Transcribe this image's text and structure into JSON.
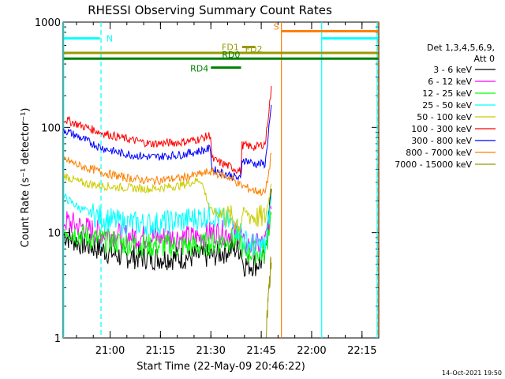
{
  "chart_data": {
    "type": "line",
    "title": "RHESSI Observing Summary Count Rates",
    "xlabel": "Start Time (22-May-09 20:46:22)",
    "ylabel": "Count Rate (s⁻¹ detector⁻¹)",
    "y_scale": "log",
    "ylim": [
      1,
      1000
    ],
    "xlim_minutes": [
      20.767,
      22.333
    ],
    "x_ticks": [
      {
        "label": "21:00",
        "t": 21.0
      },
      {
        "label": "21:15",
        "t": 21.25
      },
      {
        "label": "21:30",
        "t": 21.5
      },
      {
        "label": "21:45",
        "t": 21.75
      },
      {
        "label": "22:00",
        "t": 22.0
      },
      {
        "label": "22:15",
        "t": 22.25
      }
    ],
    "y_ticks": [
      {
        "label": "1",
        "v": 1
      },
      {
        "label": "10",
        "v": 10
      },
      {
        "label": "100",
        "v": 100
      },
      {
        "label": "1000",
        "v": 1000
      }
    ],
    "legend": {
      "header": [
        "Det 1,3,4,5,6,9,",
        "Att 0"
      ],
      "placement": "right"
    },
    "series": [
      {
        "name": "3 - 6 keV",
        "color": "#000000",
        "points": [
          [
            20.77,
            9.5
          ],
          [
            20.85,
            8.0
          ],
          [
            20.95,
            7.0
          ],
          [
            21.05,
            6.0
          ],
          [
            21.2,
            5.8
          ],
          [
            21.35,
            5.8
          ],
          [
            21.45,
            6.0
          ],
          [
            21.5,
            6.0
          ],
          [
            21.6,
            7.0
          ],
          [
            21.65,
            7.0
          ],
          [
            21.66,
            5.0
          ],
          [
            21.72,
            5.0
          ],
          [
            21.77,
            5.5
          ],
          [
            21.785,
            14
          ],
          [
            21.795,
            22
          ],
          [
            21.8,
            24
          ]
        ]
      },
      {
        "name": "6 - 12 keV",
        "color": "#ff00ff",
        "points": [
          [
            20.77,
            13
          ],
          [
            20.85,
            11.5
          ],
          [
            20.95,
            10
          ],
          [
            21.05,
            9.5
          ],
          [
            21.2,
            9.0
          ],
          [
            21.35,
            9.0
          ],
          [
            21.45,
            9.0
          ],
          [
            21.5,
            10
          ],
          [
            21.6,
            10
          ],
          [
            21.65,
            10
          ],
          [
            21.66,
            7.5
          ],
          [
            21.72,
            7.5
          ],
          [
            21.77,
            8
          ],
          [
            21.79,
            14
          ],
          [
            21.8,
            18
          ]
        ]
      },
      {
        "name": "12 - 25 keV",
        "color": "#00ff00",
        "points": [
          [
            20.77,
            11
          ],
          [
            20.85,
            9.5
          ],
          [
            20.95,
            8.5
          ],
          [
            21.05,
            8.0
          ],
          [
            21.2,
            7.5
          ],
          [
            21.35,
            7.5
          ],
          [
            21.45,
            7.5
          ],
          [
            21.5,
            8.0
          ],
          [
            21.6,
            8.5
          ],
          [
            21.65,
            8.5
          ],
          [
            21.66,
            6.5
          ],
          [
            21.72,
            6.5
          ],
          [
            21.77,
            6.5
          ],
          [
            21.79,
            12
          ],
          [
            21.8,
            16
          ]
        ]
      },
      {
        "name": "25 - 50 keV",
        "color": "#00ffff",
        "points": [
          [
            20.77,
            22
          ],
          [
            20.85,
            17
          ],
          [
            20.95,
            14
          ],
          [
            21.05,
            12.5
          ],
          [
            21.2,
            12
          ],
          [
            21.35,
            13
          ],
          [
            21.45,
            14
          ],
          [
            21.5,
            15
          ],
          [
            21.6,
            12
          ],
          [
            21.65,
            10.5
          ],
          [
            21.66,
            8.5
          ],
          [
            21.72,
            7.5
          ],
          [
            21.77,
            7.5
          ],
          [
            21.79,
            16
          ],
          [
            21.8,
            22
          ]
        ]
      },
      {
        "name": "50 - 100 keV",
        "color": "#cccc00",
        "points": [
          [
            20.77,
            35
          ],
          [
            20.85,
            30
          ],
          [
            20.95,
            28
          ],
          [
            21.05,
            27
          ],
          [
            21.2,
            26
          ],
          [
            21.35,
            28
          ],
          [
            21.45,
            32
          ],
          [
            21.5,
            16
          ],
          [
            21.6,
            14
          ],
          [
            21.65,
            12
          ],
          [
            21.66,
            16
          ],
          [
            21.72,
            14
          ],
          [
            21.77,
            14
          ],
          [
            21.79,
            22
          ],
          [
            21.8,
            30
          ]
        ]
      },
      {
        "name": "100 - 300 keV",
        "color": "#ff0000",
        "points": [
          [
            20.77,
            120
          ],
          [
            20.85,
            105
          ],
          [
            20.95,
            90
          ],
          [
            21.05,
            80
          ],
          [
            21.2,
            70
          ],
          [
            21.35,
            72
          ],
          [
            21.45,
            78
          ],
          [
            21.5,
            85
          ],
          [
            21.505,
            50
          ],
          [
            21.6,
            42
          ],
          [
            21.65,
            38
          ],
          [
            21.655,
            68
          ],
          [
            21.72,
            65
          ],
          [
            21.77,
            70
          ],
          [
            21.79,
            160
          ],
          [
            21.8,
            230
          ]
        ]
      },
      {
        "name": "300 - 800 keV",
        "color": "#0000ff",
        "points": [
          [
            20.77,
            95
          ],
          [
            20.85,
            80
          ],
          [
            20.95,
            65
          ],
          [
            21.05,
            57
          ],
          [
            21.2,
            52
          ],
          [
            21.35,
            55
          ],
          [
            21.45,
            60
          ],
          [
            21.5,
            63
          ],
          [
            21.505,
            40
          ],
          [
            21.6,
            35
          ],
          [
            21.65,
            32
          ],
          [
            21.655,
            50
          ],
          [
            21.72,
            45
          ],
          [
            21.77,
            45
          ],
          [
            21.79,
            110
          ],
          [
            21.8,
            150
          ]
        ]
      },
      {
        "name": "800 - 7000 keV",
        "color": "#ff8000",
        "points": [
          [
            20.77,
            50
          ],
          [
            20.85,
            43
          ],
          [
            20.95,
            38
          ],
          [
            21.05,
            34
          ],
          [
            21.2,
            31
          ],
          [
            21.35,
            33
          ],
          [
            21.45,
            36
          ],
          [
            21.5,
            38
          ],
          [
            21.6,
            33
          ],
          [
            21.65,
            28
          ],
          [
            21.72,
            25
          ],
          [
            21.77,
            24
          ],
          [
            21.79,
            40
          ],
          [
            21.8,
            60
          ]
        ]
      },
      {
        "name": "7000 - 15000 keV",
        "color": "#999900",
        "points": [
          [
            21.775,
            1
          ],
          [
            21.785,
            2.5
          ],
          [
            21.795,
            4.5
          ],
          [
            21.8,
            5.0
          ]
        ]
      }
    ],
    "annotations": [
      {
        "label": "N",
        "color": "#00ffff",
        "type": "bar",
        "t_start": 20.77,
        "t_end": 20.95,
        "v": 700
      },
      {
        "label": "N",
        "color": "#00ffff",
        "type": "bar",
        "t_start": 22.05,
        "t_end": 22.33,
        "v": 700
      },
      {
        "label": "S",
        "color": "#ff8000",
        "type": "bar",
        "t_start": 21.85,
        "t_end": 22.33,
        "v": 820
      },
      {
        "label": "FD1",
        "color": "#999900",
        "type": "bar",
        "t_start": 21.655,
        "t_end": 21.72,
        "v": 580
      },
      {
        "label": "FD2",
        "color": "#999900",
        "type": "bar",
        "t_start": 20.77,
        "t_end": 22.33,
        "v": 510
      },
      {
        "label": "RD0",
        "color": "#008000",
        "type": "bar",
        "t_start": 20.77,
        "t_end": 22.33,
        "v": 450
      },
      {
        "label": "RD4",
        "color": "#008000",
        "type": "bar",
        "t_start": 21.5,
        "t_end": 21.65,
        "v": 370
      }
    ],
    "vlines": [
      {
        "t": 20.77,
        "color": "#00ffff",
        "style": "solid"
      },
      {
        "t": 20.955,
        "color": "#00ffff",
        "style": "dashed"
      },
      {
        "t": 21.85,
        "color": "#ff8000",
        "style": "solid"
      },
      {
        "t": 22.05,
        "color": "#00ffff",
        "style": "solid"
      },
      {
        "t": 22.325,
        "color": "#00ffff",
        "style": "solid"
      },
      {
        "t": 22.33,
        "color": "#ff8000",
        "style": "dashed"
      }
    ]
  },
  "footer": {
    "date": "14-Oct-2021 19:50"
  }
}
